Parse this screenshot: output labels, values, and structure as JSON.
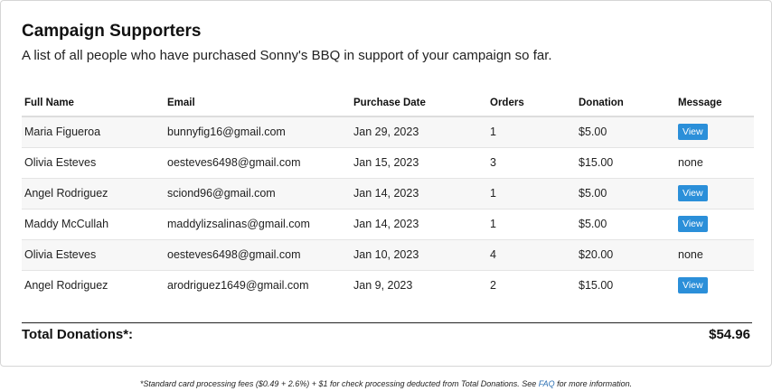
{
  "header": {
    "title": "Campaign Supporters",
    "subtitle": "A list of all people who have purchased Sonny's BBQ in support of your campaign so far."
  },
  "table": {
    "columns": [
      "Full Name",
      "Email",
      "Purchase Date",
      "Orders",
      "Donation",
      "Message"
    ],
    "rows": [
      {
        "name": "Maria Figueroa",
        "email": "bunnyfig16@gmail.com",
        "date": "Jan 29, 2023",
        "orders": "1",
        "donation": "$5.00",
        "message": "View"
      },
      {
        "name": "Olivia Esteves",
        "email": "oesteves6498@gmail.com",
        "date": "Jan 15, 2023",
        "orders": "3",
        "donation": "$15.00",
        "message": "none"
      },
      {
        "name": "Angel Rodriguez",
        "email": "sciond96@gmail.com",
        "date": "Jan 14, 2023",
        "orders": "1",
        "donation": "$5.00",
        "message": "View"
      },
      {
        "name": "Maddy McCullah",
        "email": "maddylizsalinas@gmail.com",
        "date": "Jan 14, 2023",
        "orders": "1",
        "donation": "$5.00",
        "message": "View"
      },
      {
        "name": "Olivia Esteves",
        "email": "oesteves6498@gmail.com",
        "date": "Jan 10, 2023",
        "orders": "4",
        "donation": "$20.00",
        "message": "none"
      },
      {
        "name": "Angel Rodriguez",
        "email": "arodriguez1649@gmail.com",
        "date": "Jan 9, 2023",
        "orders": "2",
        "donation": "$15.00",
        "message": "View"
      }
    ]
  },
  "total": {
    "label": "Total Donations*:",
    "value": "$54.96"
  },
  "footnote": {
    "before": "*Standard card processing fees ($0.49 + 2.6%) + $1 for check processing deducted from Total Donations. See ",
    "link": "FAQ",
    "after": " for more information."
  },
  "colors": {
    "accent": "#2b8fd9",
    "link": "#2b6fb3"
  }
}
